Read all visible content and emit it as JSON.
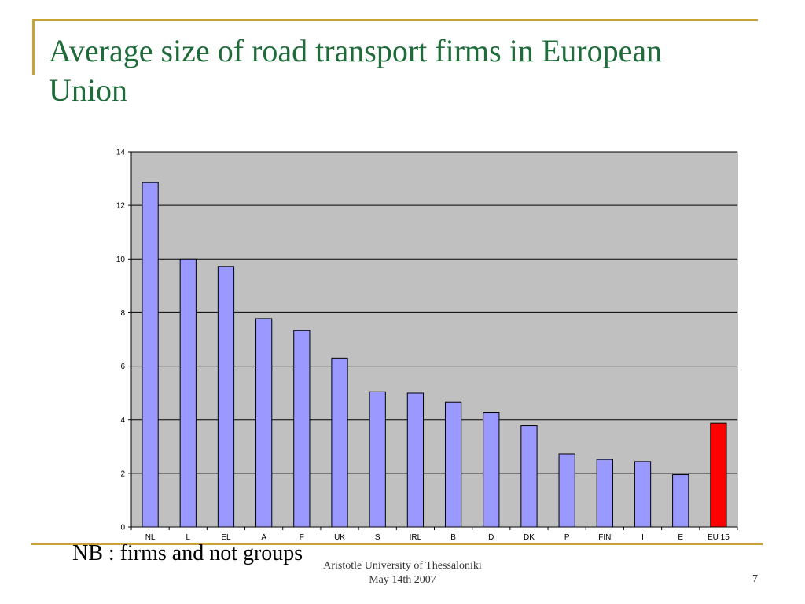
{
  "slide": {
    "title": "Average size of road transport firms in European Union",
    "note": "NB : firms and not groups",
    "footer_line1": "Aristotle University of Thessaloniki",
    "footer_line2": "May 14th 2007",
    "page_number": "7"
  },
  "colors": {
    "accent_rule": "#c9a23a",
    "title_text": "#1f6b3a",
    "bar_default": "#9999ff",
    "bar_highlight": "#ff0000",
    "plot_background": "#c0c0c0"
  },
  "chart_data": {
    "type": "bar",
    "categories": [
      "NL",
      "L",
      "EL",
      "A",
      "F",
      "UK",
      "S",
      "IRL",
      "B",
      "D",
      "DK",
      "P",
      "FIN",
      "I",
      "E",
      "EU 15"
    ],
    "values": [
      12.85,
      10.0,
      9.72,
      7.78,
      7.33,
      6.3,
      5.04,
      4.99,
      4.66,
      4.27,
      3.77,
      2.73,
      2.52,
      2.44,
      1.95,
      3.87
    ],
    "highlight_category": "EU 15",
    "ylim": [
      0,
      14
    ],
    "yticks": [
      0,
      2,
      4,
      6,
      8,
      10,
      12,
      14
    ],
    "grid": true,
    "title": "",
    "xlabel": "",
    "ylabel": ""
  }
}
